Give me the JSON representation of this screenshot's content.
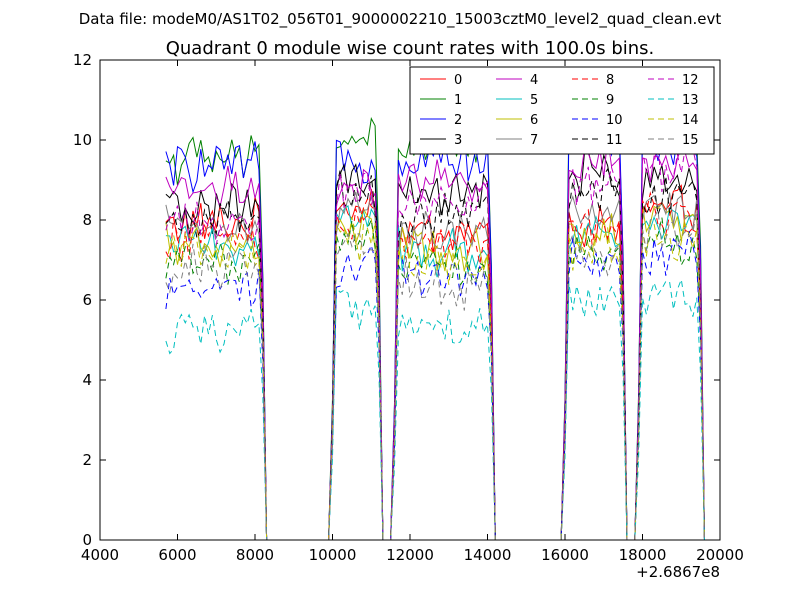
{
  "chart_data": {
    "type": "line",
    "suptitle": "Data file: modeM0/AS1T02_056T01_9000002210_15003cztM0_level2_quad_clean.evt",
    "title": "Quadrant 0 module wise count rates with 100.0s bins.",
    "xlabel": "",
    "ylabel": "",
    "x_offset_label": "+2.6867e8",
    "xlim": [
      4000,
      20000
    ],
    "ylim": [
      0,
      12
    ],
    "xticks": [
      4000,
      6000,
      8000,
      10000,
      12000,
      14000,
      16000,
      18000,
      20000
    ],
    "yticks": [
      0,
      2,
      4,
      6,
      8,
      10,
      12
    ],
    "grid": false,
    "legend_position": "top-right",
    "legend_columns": 4,
    "segments": [
      [
        5700,
        8300
      ],
      [
        10100,
        11300
      ],
      [
        11700,
        14200
      ],
      [
        16100,
        17600
      ],
      [
        18000,
        19600
      ]
    ],
    "series": [
      {
        "name": "0",
        "color": "#ff0000",
        "dash": false,
        "levels": [
          7.9,
          8.4,
          7.7,
          7.8,
          8.2
        ]
      },
      {
        "name": "1",
        "color": "#008000",
        "dash": false,
        "levels": [
          9.5,
          10.1,
          9.8,
          10.2,
          10.5
        ]
      },
      {
        "name": "2",
        "color": "#0000ff",
        "dash": false,
        "levels": [
          9.3,
          9.5,
          9.6,
          10.0,
          10.0
        ]
      },
      {
        "name": "3",
        "color": "#000000",
        "dash": false,
        "levels": [
          8.3,
          8.9,
          8.6,
          9.1,
          9.0
        ]
      },
      {
        "name": "4",
        "color": "#bf00bf",
        "dash": false,
        "levels": [
          8.8,
          8.6,
          8.9,
          9.5,
          9.4
        ]
      },
      {
        "name": "5",
        "color": "#00bfbf",
        "dash": false,
        "levels": [
          7.4,
          8.1,
          7.2,
          7.7,
          8.0
        ]
      },
      {
        "name": "6",
        "color": "#bfbf00",
        "dash": false,
        "levels": [
          7.3,
          7.8,
          7.2,
          7.6,
          7.9
        ]
      },
      {
        "name": "7",
        "color": "#808080",
        "dash": false,
        "levels": [
          7.8,
          8.3,
          7.6,
          8.2,
          8.3
        ]
      },
      {
        "name": "8",
        "color": "#ff0000",
        "dash": true,
        "levels": [
          7.6,
          8.0,
          7.5,
          8.0,
          8.2
        ]
      },
      {
        "name": "9",
        "color": "#008000",
        "dash": true,
        "levels": [
          7.0,
          7.6,
          6.9,
          7.3,
          7.4
        ]
      },
      {
        "name": "10",
        "color": "#0000ff",
        "dash": true,
        "levels": [
          6.3,
          6.9,
          6.7,
          7.0,
          7.1
        ]
      },
      {
        "name": "11",
        "color": "#000000",
        "dash": true,
        "levels": [
          8.0,
          8.6,
          8.1,
          8.8,
          8.6
        ]
      },
      {
        "name": "12",
        "color": "#bf00bf",
        "dash": true,
        "levels": [
          7.9,
          8.7,
          8.4,
          9.0,
          9.3
        ]
      },
      {
        "name": "13",
        "color": "#00bfbf",
        "dash": true,
        "levels": [
          5.2,
          5.9,
          5.3,
          5.9,
          5.9
        ]
      },
      {
        "name": "14",
        "color": "#bfbf00",
        "dash": true,
        "levels": [
          7.2,
          7.6,
          7.0,
          7.3,
          7.5
        ]
      },
      {
        "name": "15",
        "color": "#808080",
        "dash": true,
        "levels": [
          6.8,
          7.4,
          6.4,
          7.2,
          7.8
        ]
      }
    ]
  }
}
